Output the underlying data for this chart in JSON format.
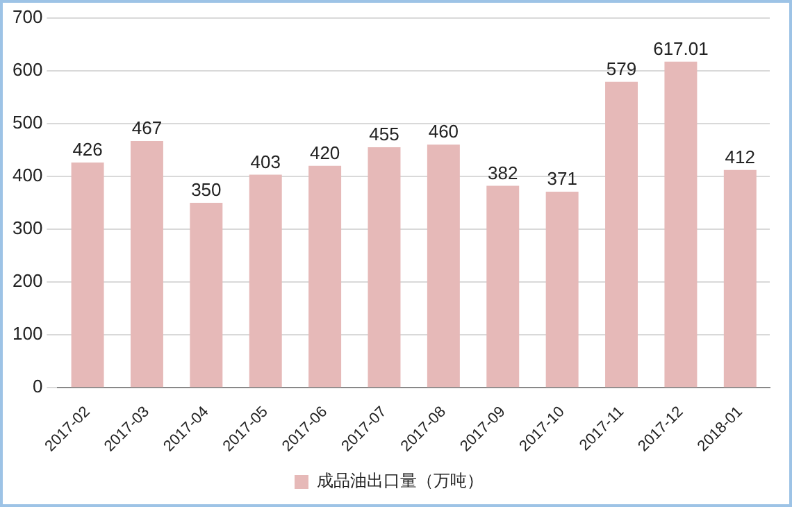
{
  "chart_data": {
    "type": "bar",
    "categories": [
      "2017-02",
      "2017-03",
      "2017-04",
      "2017-05",
      "2017-06",
      "2017-07",
      "2017-08",
      "2017-09",
      "2017-10",
      "2017-11",
      "2017-12",
      "2018-01"
    ],
    "series": [
      {
        "name": "成品油出口量（万吨）",
        "color": "#e6b9b8",
        "values": [
          426,
          467,
          350,
          403,
          420,
          455,
          460,
          382,
          371,
          579,
          617.01,
          412
        ]
      }
    ],
    "ylim": [
      0,
      700
    ],
    "yticks": [
      0,
      100,
      200,
      300,
      400,
      500,
      600,
      700
    ],
    "grid": "y",
    "legend": "bottom",
    "data_labels": true
  }
}
